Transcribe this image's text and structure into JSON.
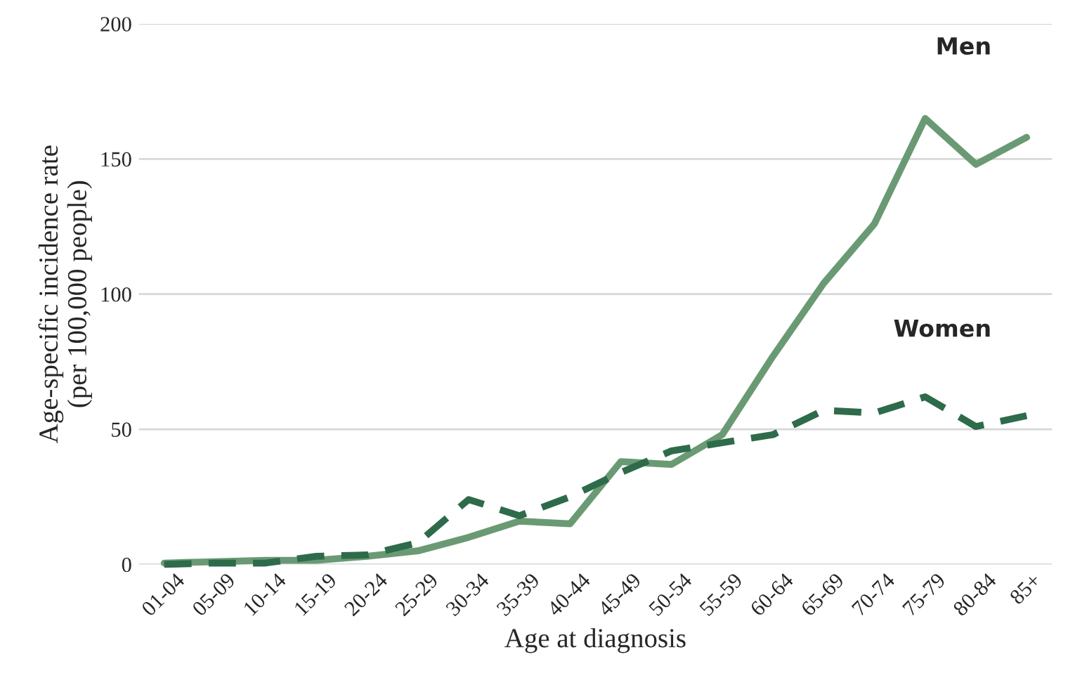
{
  "chart_data": {
    "type": "line",
    "xlabel": "Age at diagnosis",
    "ylabel": "Age-specific incidence rate\n(per 100,000 people)",
    "categories": [
      "01-04",
      "05-09",
      "10-14",
      "15-19",
      "20-24",
      "25-29",
      "30-34",
      "35-39",
      "40-44",
      "45-49",
      "50-54",
      "55-59",
      "60-64",
      "65-69",
      "70-74",
      "75-79",
      "80-84",
      "85+"
    ],
    "series": [
      {
        "name": "Men",
        "color": "#6a9a74",
        "line_style": "solid",
        "values": [
          0.5,
          1,
          1.5,
          1.5,
          3,
          5,
          10,
          16,
          15,
          38,
          37,
          48,
          77,
          104,
          126,
          165,
          148,
          158
        ]
      },
      {
        "name": "Women",
        "color": "#2e6b4a",
        "line_style": "dashed",
        "values": [
          0,
          0.5,
          0.5,
          3,
          3.5,
          8,
          24,
          18,
          25,
          34,
          42,
          45,
          48,
          57,
          56,
          62,
          51,
          55
        ]
      }
    ],
    "ylim": [
      0,
      200
    ],
    "yticks": [
      0,
      50,
      100,
      150,
      200
    ],
    "grid": "y",
    "legend": false
  }
}
